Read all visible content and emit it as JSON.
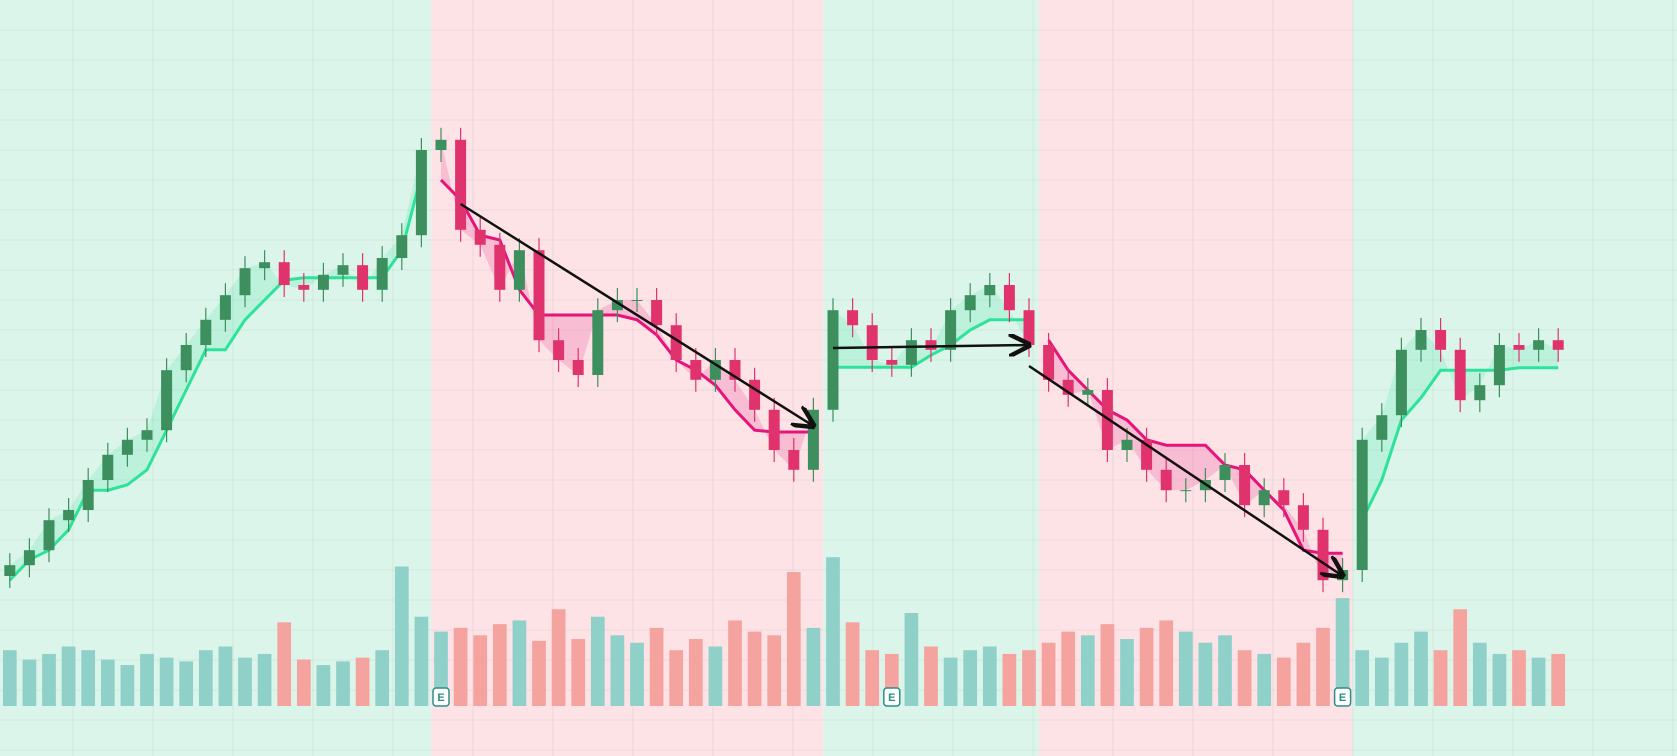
{
  "chart_data": {
    "type": "candlestick",
    "xlim": [
      -0.5,
      79.5
    ],
    "ylim": [
      0,
      120
    ],
    "vlim": [
      0,
      100
    ],
    "colors": {
      "up": "#3d8f5e",
      "down": "#e0336e",
      "volume_up": "#8fd0c8",
      "volume_down": "#f4a39e",
      "trend_up": "#2de39a",
      "trend_down": "#e6147a",
      "bg_up": "#dcf5ea",
      "bg_down": "#fde2e6",
      "arrow": "#111111"
    },
    "open": [
      24,
      25.8,
      28.3,
      33.3,
      35,
      40,
      44.2,
      46.7,
      48.3,
      58.3,
      62.5,
      66.7,
      70.8,
      75.3,
      76.3,
      72.5,
      71.7,
      74.2,
      75.8,
      71.7,
      77,
      80.8,
      95,
      96.7,
      81.7,
      79.2,
      71.7,
      78.3,
      63.3,
      60,
      57.5,
      68.3,
      70,
      70,
      65.8,
      60,
      56.7,
      60,
      56.7,
      51.7,
      45,
      41.7,
      51.7,
      68.3,
      65.8,
      60,
      59.2,
      63.3,
      61.7,
      68.3,
      70.8,
      72.5,
      68.3,
      62.5,
      56.7,
      54.2,
      55,
      45,
      46.7,
      41.7,
      38.3,
      38.3,
      40,
      42.5,
      35.8,
      38.3,
      35.8,
      31.7,
      23.3,
      25,
      46.7,
      50.8,
      61.7,
      65,
      61.7,
      53.3,
      55.8,
      62.5,
      61.7,
      63.3
    ],
    "high": [
      27.8,
      30.3,
      35.3,
      37,
      42,
      46.2,
      48.7,
      50.3,
      60.3,
      64.5,
      68.7,
      72.8,
      77.3,
      78.3,
      78.3,
      74.5,
      76.2,
      77.8,
      77.8,
      79,
      82.8,
      97,
      98.7,
      98.7,
      83.7,
      81.2,
      80.3,
      80.3,
      65.3,
      62,
      70.3,
      72,
      72,
      72,
      67.8,
      62,
      62,
      62,
      58.7,
      53.7,
      47,
      53.7,
      70.3,
      70.3,
      67.8,
      62,
      65.3,
      65.3,
      70.3,
      72.8,
      74.5,
      74.5,
      70.3,
      64.5,
      58.7,
      57,
      57,
      48.7,
      48.7,
      43.7,
      40.3,
      42,
      44.5,
      44.5,
      40.3,
      40.3,
      37.8,
      33.7,
      27,
      48.7,
      52.8,
      63.7,
      67,
      67,
      63.7,
      57.8,
      64.5,
      64.5,
      65.3,
      65.3
    ],
    "low": [
      22,
      23.8,
      26.3,
      31.3,
      33,
      38,
      42.2,
      44.7,
      46.3,
      56.3,
      60.5,
      64.7,
      68.8,
      73.3,
      70.5,
      69.7,
      69.7,
      72.2,
      69.7,
      69.7,
      75,
      78.8,
      93,
      79.7,
      77.2,
      69.7,
      69.7,
      61.3,
      58,
      55.5,
      55.5,
      66.3,
      68,
      63.8,
      58,
      54.7,
      54.7,
      54.7,
      49.7,
      43,
      39.7,
      39.7,
      49.7,
      63.8,
      58,
      57.2,
      57.2,
      59.7,
      59.7,
      66.3,
      68.8,
      66.3,
      60.5,
      54.7,
      52.2,
      52.2,
      43,
      43,
      39.7,
      36.3,
      36.3,
      36.3,
      38,
      33.8,
      33.8,
      33.8,
      29.7,
      21.3,
      21.3,
      23,
      44.7,
      48.8,
      59.7,
      59.7,
      51.3,
      51.3,
      53.8,
      59.7,
      59.7,
      59.7
    ],
    "close": [
      25.8,
      28.3,
      33.3,
      35,
      40,
      44.2,
      46.7,
      48.3,
      58.3,
      62.5,
      66.7,
      70.8,
      75.3,
      76.3,
      72.5,
      71.7,
      74.2,
      75.8,
      71.7,
      77,
      80.8,
      95,
      96.7,
      81.7,
      79.2,
      71.7,
      78.3,
      63.3,
      60,
      57.5,
      68.3,
      70,
      70,
      65.8,
      60,
      56.7,
      60,
      56.7,
      51.7,
      45,
      41.7,
      51.7,
      68.3,
      65.8,
      60,
      59.2,
      63.3,
      61.7,
      68.3,
      70.8,
      72.5,
      68.3,
      62.5,
      56.7,
      54.2,
      55,
      45,
      46.7,
      41.7,
      38.3,
      38.3,
      40,
      42.5,
      35.8,
      38.3,
      35.8,
      31.7,
      23.3,
      25,
      46.7,
      50.8,
      61.7,
      65,
      61.7,
      53.3,
      55.8,
      62.5,
      61.7,
      63.3,
      61.7
    ],
    "volume": [
      30,
      25,
      28,
      32,
      30,
      25,
      22,
      28,
      26,
      24,
      30,
      32,
      26,
      28,
      45,
      25,
      22,
      24,
      26,
      30,
      75,
      48,
      40,
      42,
      38,
      44,
      46,
      35,
      52,
      36,
      48,
      38,
      34,
      42,
      30,
      36,
      32,
      46,
      40,
      38,
      72,
      42,
      80,
      45,
      30,
      28,
      50,
      32,
      26,
      30,
      32,
      28,
      30,
      34,
      40,
      38,
      44,
      36,
      42,
      46,
      40,
      34,
      38,
      30,
      28,
      26,
      34,
      42,
      58,
      30,
      26,
      34,
      40,
      30,
      52,
      34,
      28,
      30,
      26,
      28
    ],
    "trend_up": [
      23.3,
      26.7,
      28.3,
      31.7,
      38.3,
      38.3,
      39.2,
      41.7,
      48.3,
      55,
      61.7,
      61.7,
      66.7,
      70,
      73.3,
      73.7,
      73.7,
      73.7,
      73.7,
      73.7,
      78.3,
      90.8,
      null,
      null,
      null,
      null,
      null,
      null,
      null,
      null,
      null,
      null,
      null,
      null,
      null,
      null,
      null,
      null,
      null,
      null,
      null,
      null,
      58.8,
      58.8,
      58.8,
      58.8,
      58.8,
      60.8,
      62.5,
      65,
      66.7,
      66.7,
      66.7,
      null,
      null,
      null,
      null,
      null,
      null,
      null,
      null,
      null,
      null,
      null,
      null,
      null,
      null,
      null,
      null,
      33.3,
      40,
      50,
      53.7,
      58.3,
      58.3,
      58.3,
      58.3,
      58.7,
      58.7,
      58.7
    ],
    "trend_down": [
      null,
      null,
      null,
      null,
      null,
      null,
      null,
      null,
      null,
      null,
      null,
      null,
      null,
      null,
      null,
      null,
      null,
      null,
      null,
      null,
      null,
      null,
      90,
      86.7,
      80.8,
      80,
      71.7,
      67.5,
      67.5,
      67.5,
      67.5,
      67.5,
      66.7,
      64.2,
      60,
      58.3,
      55.8,
      51.7,
      48.3,
      48,
      48,
      48,
      null,
      null,
      null,
      null,
      null,
      null,
      null,
      null,
      null,
      null,
      null,
      63.3,
      58.3,
      55,
      51.7,
      50,
      46.7,
      45.8,
      45.8,
      45.8,
      42.5,
      41.7,
      38.3,
      35,
      28.3,
      27.8,
      27.8,
      null,
      null,
      null,
      null,
      null,
      null,
      null,
      null,
      null,
      null,
      null
    ],
    "arrows": [
      {
        "from": [
          23,
          86
        ],
        "to": [
          41,
          49
        ]
      },
      {
        "from": [
          42,
          62
        ],
        "to": [
          52,
          62.5
        ]
      },
      {
        "from": [
          52,
          59
        ],
        "to": [
          68,
          24
        ]
      }
    ],
    "events": [
      {
        "index": 22,
        "label": "E"
      },
      {
        "index": 45,
        "label": "E"
      },
      {
        "index": 68,
        "label": "E"
      }
    ]
  }
}
